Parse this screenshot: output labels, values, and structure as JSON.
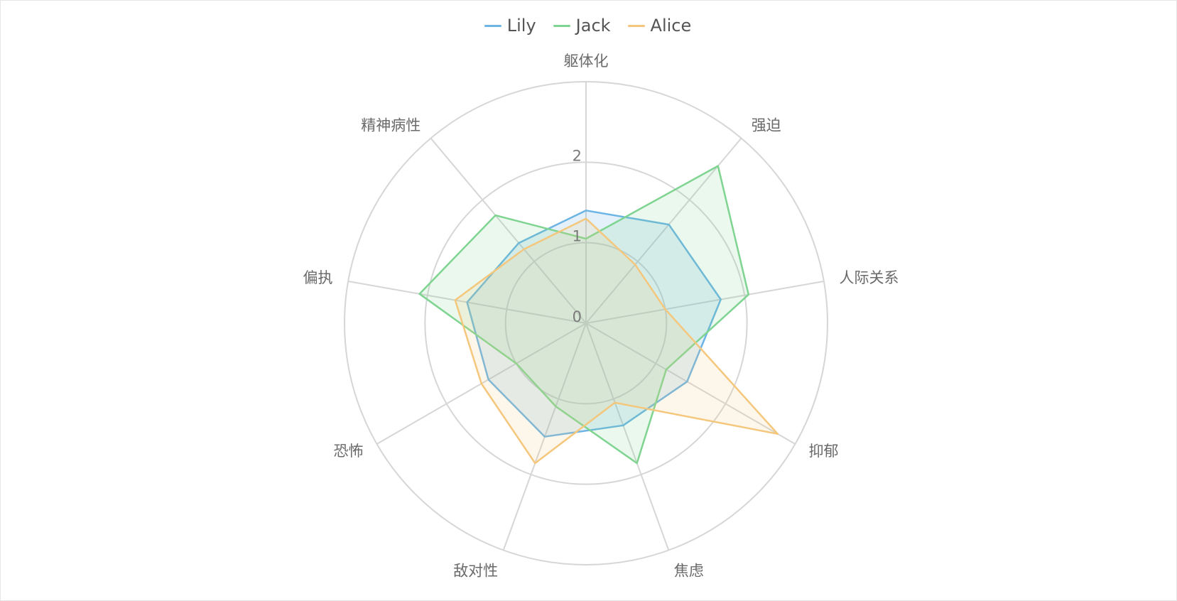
{
  "chart_data": {
    "type": "radar",
    "indicators": [
      "躯体化",
      "强迫",
      "人际关系",
      "抑郁",
      "焦虑",
      "敌对性",
      "恐怖",
      "偏执",
      "精神病性"
    ],
    "ticks": [
      "0",
      "1",
      "2"
    ],
    "range": [
      0,
      3
    ],
    "grid": true,
    "legend_position": "top-center",
    "series": [
      {
        "name": "Lily",
        "color": "#6cb4e4",
        "fill": "rgba(108,180,228,0.18)",
        "values": [
          1.4,
          1.6,
          1.7,
          1.45,
          1.35,
          1.5,
          1.4,
          1.5,
          1.3
        ]
      },
      {
        "name": "Jack",
        "color": "#7fd491",
        "fill": "rgba(127,212,145,0.16)",
        "values": [
          1.05,
          2.55,
          2.05,
          1.15,
          1.85,
          1.1,
          1.0,
          2.1,
          1.75
        ]
      },
      {
        "name": "Alice",
        "color": "#f4c77d",
        "fill": "rgba(244,199,125,0.16)",
        "values": [
          1.3,
          0.95,
          1.0,
          2.75,
          1.05,
          1.85,
          1.5,
          1.65,
          1.2
        ]
      }
    ]
  }
}
